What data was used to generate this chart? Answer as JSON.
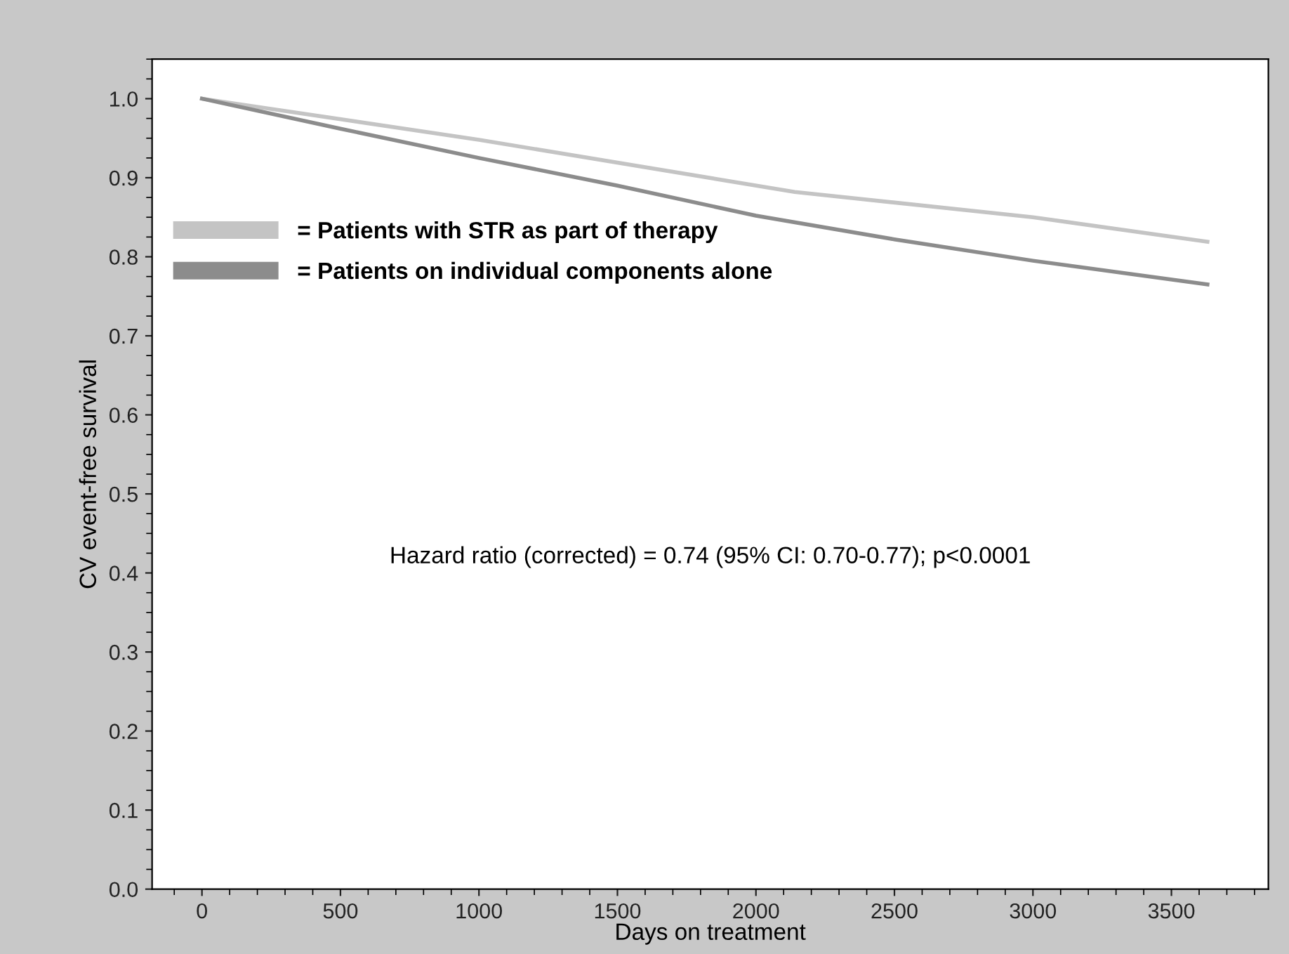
{
  "chart_data": {
    "type": "line",
    "xlabel": "Days on treatment",
    "ylabel": "CV event-free survival",
    "xlim": [
      -180,
      3850
    ],
    "ylim": [
      0,
      1.05
    ],
    "xticks": [
      0,
      500,
      1000,
      1500,
      2000,
      2500,
      3000,
      3500
    ],
    "yticks": [
      {
        "value": 0,
        "label": "0.0"
      },
      0.1,
      0.2,
      0.3,
      0.4,
      0.5,
      0.6,
      0.7,
      0.8,
      0.9,
      {
        "value": 1,
        "label": "1.0"
      }
    ],
    "series": [
      {
        "name": "= Patients with STR as part of therapy",
        "color": "#c4c4c4",
        "x": [
          0,
          1000,
          2140,
          3000,
          3630
        ],
        "values": [
          1.0,
          0.948,
          0.882,
          0.85,
          0.819
        ]
      },
      {
        "name": "= Patients on individual components alone",
        "color": "#8c8c8c",
        "x": [
          0,
          500,
          1000,
          1500,
          2000,
          2500,
          3000,
          3630
        ],
        "values": [
          1.0,
          0.962,
          0.925,
          0.89,
          0.852,
          0.822,
          0.795,
          0.765
        ]
      }
    ],
    "annotations": [
      "Hazard ratio (corrected) = 0.74 (95% CI: 0.70-0.77); p<0.0001"
    ],
    "legend": "top left",
    "grid": false,
    "marker": "none",
    "line_style": "solid"
  }
}
